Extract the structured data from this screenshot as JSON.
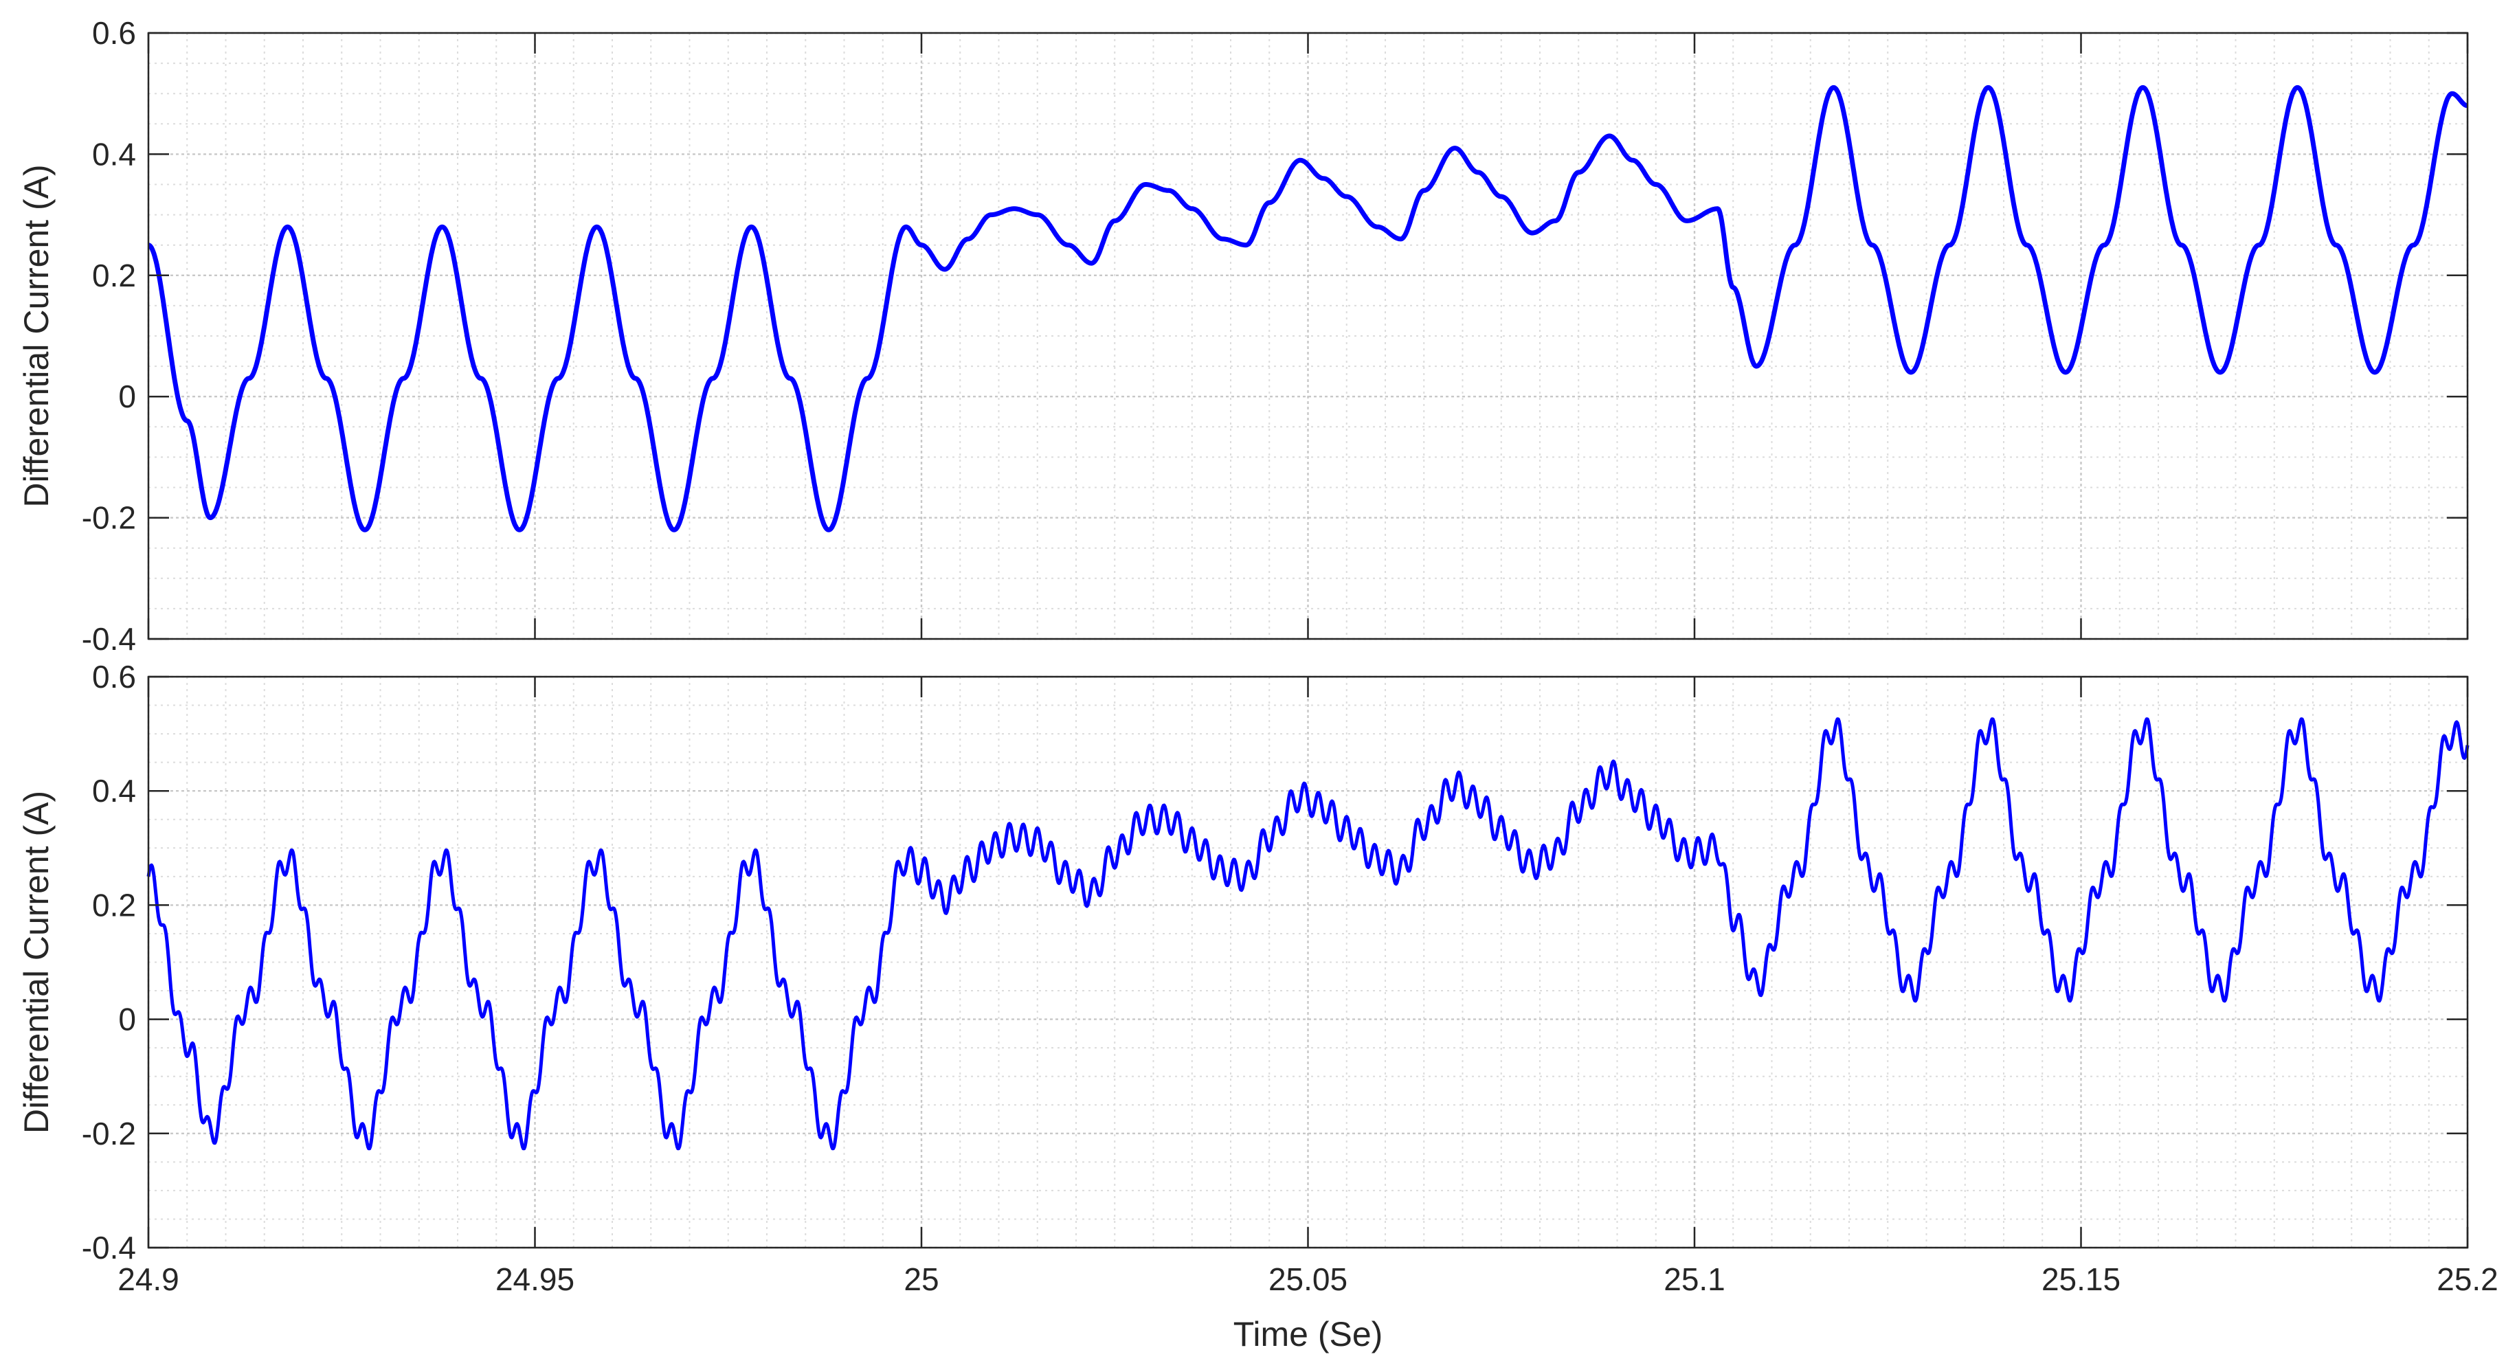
{
  "chart_data": [
    {
      "type": "line",
      "ylabel": "Differential Current (A)",
      "xlim": [
        24.9,
        25.2
      ],
      "ylim": [
        -0.4,
        0.6
      ],
      "yticks": [
        -0.4,
        -0.2,
        0,
        0.2,
        0.4,
        0.6
      ],
      "ytick_labels": [
        "-0.4",
        "-0.2",
        "0",
        "0.2",
        "0.4",
        "0.6"
      ],
      "grid": true,
      "minor_grid": true,
      "line_color": "#0000ff",
      "series": [
        {
          "x": [
            24.9,
            24.905,
            24.908,
            24.913,
            24.918,
            24.923,
            24.928,
            24.933,
            24.938,
            24.943,
            24.948,
            24.953,
            24.958,
            24.963,
            24.968,
            24.973,
            24.978,
            24.983,
            24.988,
            24.993,
            24.998,
            25.0,
            25.003,
            25.006,
            25.009,
            25.012,
            25.015,
            25.019,
            25.022,
            25.025,
            25.029,
            25.032,
            25.035,
            25.039,
            25.042,
            25.045,
            25.049,
            25.052,
            25.055,
            25.059,
            25.062,
            25.065,
            25.069,
            25.072,
            25.075,
            25.079,
            25.082,
            25.085,
            25.089,
            25.092,
            25.095,
            25.099,
            25.103,
            25.105,
            25.108,
            25.113,
            25.118,
            25.123,
            25.128,
            25.133,
            25.138,
            25.143,
            25.148,
            25.153,
            25.158,
            25.163,
            25.168,
            25.173,
            25.178,
            25.183,
            25.188,
            25.193,
            25.198,
            25.2
          ],
          "y": [
            0.25,
            -0.04,
            -0.2,
            0.03,
            0.28,
            0.03,
            -0.22,
            0.03,
            0.28,
            0.03,
            -0.22,
            0.03,
            0.28,
            0.03,
            -0.22,
            0.03,
            0.28,
            0.03,
            -0.22,
            0.03,
            0.28,
            0.25,
            0.21,
            0.26,
            0.3,
            0.31,
            0.3,
            0.25,
            0.22,
            0.29,
            0.35,
            0.34,
            0.31,
            0.26,
            0.25,
            0.32,
            0.39,
            0.36,
            0.33,
            0.28,
            0.26,
            0.34,
            0.41,
            0.37,
            0.33,
            0.27,
            0.29,
            0.37,
            0.43,
            0.39,
            0.35,
            0.29,
            0.31,
            0.18,
            0.05,
            0.25,
            0.51,
            0.25,
            0.04,
            0.25,
            0.51,
            0.25,
            0.04,
            0.25,
            0.51,
            0.25,
            0.04,
            0.25,
            0.51,
            0.25,
            0.04,
            0.25,
            0.5,
            0.48
          ]
        }
      ]
    },
    {
      "type": "line",
      "ylabel": "Differential Current (A)",
      "xlabel": "Time (Se)",
      "xlim": [
        24.9,
        25.2
      ],
      "ylim": [
        -0.4,
        0.6
      ],
      "xticks": [
        24.9,
        24.95,
        25.0,
        25.05,
        25.1,
        25.15,
        25.2
      ],
      "xtick_labels": [
        "24.9",
        "24.95",
        "25",
        "25.05",
        "25.1",
        "25.15",
        "25.2"
      ],
      "yticks": [
        -0.4,
        -0.2,
        0,
        0.2,
        0.4,
        0.6
      ],
      "ytick_labels": [
        "-0.4",
        "-0.2",
        "0",
        "0.2",
        "0.4",
        "0.6"
      ],
      "grid": true,
      "minor_grid": true,
      "line_color": "#0000ff",
      "ripple": {
        "amplitude": 0.025,
        "harmonic": 11
      },
      "series": [
        {
          "x": [
            24.9,
            24.905,
            24.908,
            24.913,
            24.918,
            24.923,
            24.928,
            24.933,
            24.938,
            24.943,
            24.948,
            24.953,
            24.958,
            24.963,
            24.968,
            24.973,
            24.978,
            24.983,
            24.988,
            24.993,
            24.998,
            25.0,
            25.003,
            25.006,
            25.009,
            25.012,
            25.015,
            25.019,
            25.022,
            25.025,
            25.029,
            25.032,
            25.035,
            25.039,
            25.042,
            25.045,
            25.049,
            25.052,
            25.055,
            25.059,
            25.062,
            25.065,
            25.069,
            25.072,
            25.075,
            25.079,
            25.082,
            25.085,
            25.089,
            25.092,
            25.095,
            25.099,
            25.103,
            25.105,
            25.108,
            25.113,
            25.118,
            25.123,
            25.128,
            25.133,
            25.138,
            25.143,
            25.148,
            25.153,
            25.158,
            25.163,
            25.168,
            25.173,
            25.178,
            25.183,
            25.188,
            25.193,
            25.198,
            25.2
          ],
          "y": [
            0.25,
            -0.04,
            -0.2,
            0.03,
            0.28,
            0.03,
            -0.21,
            0.03,
            0.28,
            0.03,
            -0.21,
            0.03,
            0.28,
            0.03,
            -0.21,
            0.03,
            0.28,
            0.03,
            -0.21,
            0.03,
            0.28,
            0.26,
            0.21,
            0.26,
            0.3,
            0.32,
            0.31,
            0.25,
            0.22,
            0.29,
            0.35,
            0.35,
            0.31,
            0.26,
            0.25,
            0.32,
            0.39,
            0.37,
            0.33,
            0.28,
            0.26,
            0.34,
            0.41,
            0.38,
            0.33,
            0.27,
            0.29,
            0.37,
            0.43,
            0.39,
            0.35,
            0.29,
            0.3,
            0.18,
            0.06,
            0.25,
            0.51,
            0.25,
            0.05,
            0.25,
            0.51,
            0.25,
            0.05,
            0.25,
            0.51,
            0.25,
            0.05,
            0.25,
            0.51,
            0.25,
            0.05,
            0.25,
            0.5,
            0.48
          ]
        }
      ]
    }
  ]
}
